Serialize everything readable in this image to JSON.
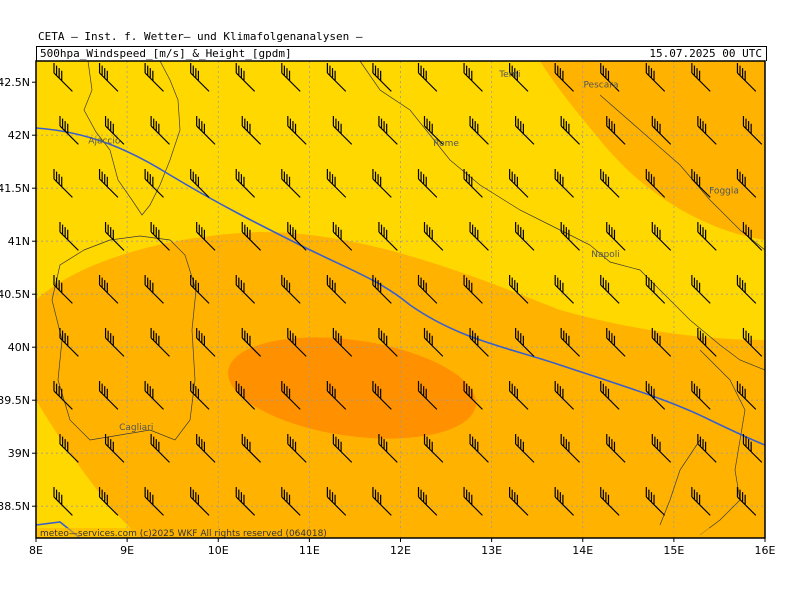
{
  "header": {
    "institute": "CETA — Inst. f. Wetter— und Klimafolgenanalysen —",
    "product": "500hpa_Windspeed_[m/s]_&_Height_[gpdm]",
    "valid_time": "15.07.2025 00 UTC"
  },
  "map": {
    "lon_range": [
      8,
      16
    ],
    "lat_range": [
      38.2,
      42.7
    ],
    "x_ticks": [
      "8E",
      "9E",
      "10E",
      "11E",
      "12E",
      "13E",
      "14E",
      "15E",
      "16E"
    ],
    "y_ticks": [
      "42.5N",
      "42N",
      "41.5N",
      "41N",
      "40.5N",
      "40N",
      "39.5N",
      "39N",
      "38.5N"
    ],
    "cities": [
      {
        "name": "Terni",
        "lon": 13.2,
        "lat": 42.55
      },
      {
        "name": "Pescara",
        "lon": 14.2,
        "lat": 42.45
      },
      {
        "name": "Ajaccio",
        "lon": 8.75,
        "lat": 41.92
      },
      {
        "name": "Rome",
        "lon": 12.5,
        "lat": 41.9
      },
      {
        "name": "Foggia",
        "lon": 15.55,
        "lat": 41.45
      },
      {
        "name": "Napoli",
        "lon": 14.25,
        "lat": 40.85
      },
      {
        "name": "Cagliari",
        "lon": 9.1,
        "lat": 39.22
      }
    ],
    "colors": {
      "yellow": "#ffd800",
      "light_orange": "#ffb300",
      "dark_orange": "#ff9100",
      "height_contour": "#3a5fcd",
      "barb": "#000000"
    },
    "copyright": "meteo—services.com  (c)2025 WKF  All rights reserved  (064018)"
  }
}
